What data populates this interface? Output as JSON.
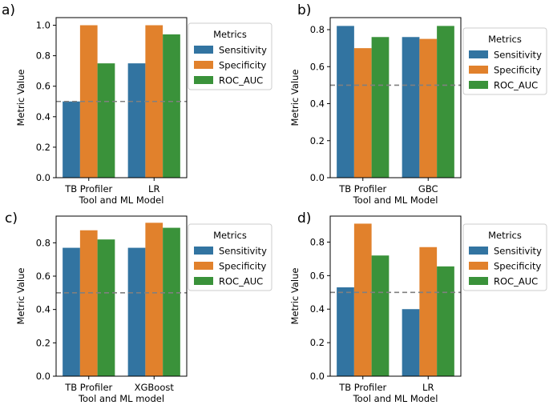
{
  "chart_data": [
    {
      "type": "bar",
      "panel_label": "a)",
      "categories": [
        "TB Profiler",
        "LR"
      ],
      "series": [
        {
          "name": "Sensitivity",
          "values": [
            0.5,
            0.75
          ]
        },
        {
          "name": "Specificity",
          "values": [
            1.0,
            1.0
          ]
        },
        {
          "name": "ROC_AUC",
          "values": [
            0.75,
            0.94
          ]
        }
      ],
      "xlabel": "Tool and ML Model",
      "ylabel": "Metric Value",
      "ylim": [
        0,
        1.05
      ],
      "yticks": [
        "0.0",
        "0.2",
        "0.4",
        "0.6",
        "0.8",
        "1.0"
      ],
      "reference_line": 0.5,
      "legend_title": "Metrics",
      "legend_position": "right"
    },
    {
      "type": "bar",
      "panel_label": "b)",
      "categories": [
        "TB Profiler",
        "GBC"
      ],
      "series": [
        {
          "name": "Sensitivity",
          "values": [
            0.82,
            0.76
          ]
        },
        {
          "name": "Specificity",
          "values": [
            0.7,
            0.75
          ]
        },
        {
          "name": "ROC_AUC",
          "values": [
            0.76,
            0.82
          ]
        }
      ],
      "xlabel": "Tool and ML Model",
      "ylabel": "Metric Value",
      "ylim": [
        0,
        0.865
      ],
      "yticks": [
        "0.0",
        "0.2",
        "0.4",
        "0.6",
        "0.8"
      ],
      "reference_line": 0.5,
      "legend_title": "Metrics",
      "legend_position": "right"
    },
    {
      "type": "bar",
      "panel_label": "c)",
      "categories": [
        "TB Profiler",
        "XGBoost"
      ],
      "series": [
        {
          "name": "Sensitivity",
          "values": [
            0.77,
            0.77
          ]
        },
        {
          "name": "Specificity",
          "values": [
            0.875,
            0.92
          ]
        },
        {
          "name": "ROC_AUC",
          "values": [
            0.82,
            0.89
          ]
        }
      ],
      "xlabel": "Tool and ML model",
      "ylabel": "Metric Value",
      "ylim": [
        0,
        0.96
      ],
      "yticks": [
        "0.0",
        "0.2",
        "0.4",
        "0.6",
        "0.8"
      ],
      "reference_line": 0.5,
      "legend_title": "Metrics",
      "legend_position": "right"
    },
    {
      "type": "bar",
      "panel_label": "d)",
      "categories": [
        "TB Profiler",
        "LR"
      ],
      "series": [
        {
          "name": "Sensitivity",
          "values": [
            0.53,
            0.4
          ]
        },
        {
          "name": "Specificity",
          "values": [
            0.91,
            0.77
          ]
        },
        {
          "name": "ROC_AUC",
          "values": [
            0.72,
            0.655
          ]
        }
      ],
      "xlabel": "Tool and ML Model",
      "ylabel": "Metric Value",
      "ylim": [
        0,
        0.955
      ],
      "yticks": [
        "0.0",
        "0.2",
        "0.4",
        "0.6",
        "0.8"
      ],
      "reference_line": 0.5,
      "legend_title": "Metrics",
      "legend_position": "right"
    }
  ],
  "colors": {
    "Sensitivity": "#3274a1",
    "Specificity": "#e1812c",
    "ROC_AUC": "#3a923a",
    "reference_line": "#808080"
  }
}
